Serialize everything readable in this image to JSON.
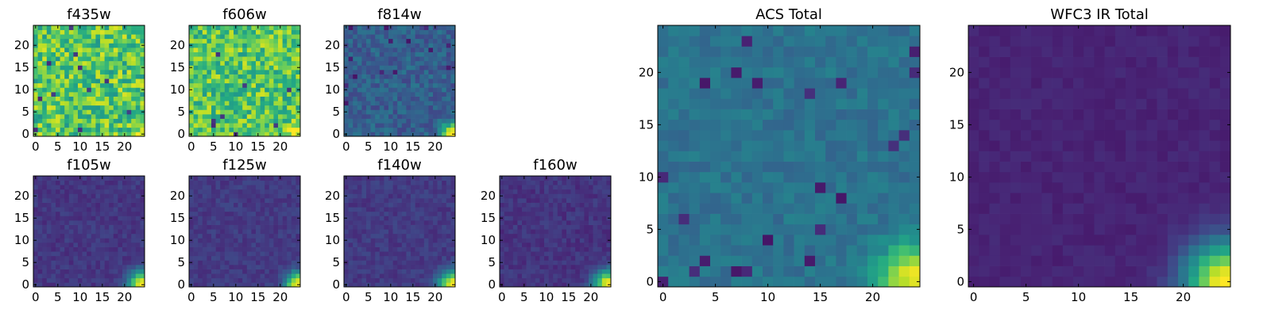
{
  "colormap": "viridis",
  "chart_data": [
    {
      "type": "heatmap",
      "title": "f435w",
      "size": 25,
      "vmin": 0,
      "vmax": 1,
      "xticks": [
        0,
        5,
        10,
        15,
        20
      ],
      "yticks": [
        0,
        5,
        10,
        15,
        20
      ],
      "base": 0.73,
      "noise": 0.22,
      "source": 0.22,
      "source_radius": 1.4,
      "dark_pixels": 12
    },
    {
      "type": "heatmap",
      "title": "f606w",
      "size": 25,
      "vmin": 0,
      "vmax": 1,
      "xticks": [
        0,
        5,
        10,
        15,
        20
      ],
      "yticks": [
        0,
        5,
        10,
        15,
        20
      ],
      "base": 0.73,
      "noise": 0.2,
      "source": 0.3,
      "source_radius": 1.6,
      "dark_pixels": 10
    },
    {
      "type": "heatmap",
      "title": "f814w",
      "size": 25,
      "vmin": 0,
      "vmax": 1,
      "xticks": [
        0,
        5,
        10,
        15,
        20
      ],
      "yticks": [
        0,
        5,
        10,
        15,
        20
      ],
      "base": 0.3,
      "noise": 0.1,
      "source": 0.72,
      "source_radius": 1.8,
      "dark_pixels": 14
    },
    {
      "type": "heatmap",
      "title": "f105w",
      "size": 25,
      "vmin": 0,
      "vmax": 1,
      "xticks": [
        0,
        5,
        10,
        15,
        20
      ],
      "yticks": [
        0,
        5,
        10,
        15,
        20
      ],
      "base": 0.16,
      "noise": 0.05,
      "source": 0.84,
      "source_radius": 2.2,
      "dark_pixels": 0
    },
    {
      "type": "heatmap",
      "title": "f125w",
      "size": 25,
      "vmin": 0,
      "vmax": 1,
      "xticks": [
        0,
        5,
        10,
        15,
        20
      ],
      "yticks": [
        0,
        5,
        10,
        15,
        20
      ],
      "base": 0.17,
      "noise": 0.05,
      "source": 0.84,
      "source_radius": 2.0,
      "dark_pixels": 0
    },
    {
      "type": "heatmap",
      "title": "f140w",
      "size": 25,
      "vmin": 0,
      "vmax": 1,
      "xticks": [
        0,
        5,
        10,
        15,
        20
      ],
      "yticks": [
        0,
        5,
        10,
        15,
        20
      ],
      "base": 0.17,
      "noise": 0.05,
      "source": 0.84,
      "source_radius": 2.2,
      "dark_pixels": 0
    },
    {
      "type": "heatmap",
      "title": "f160w",
      "size": 25,
      "vmin": 0,
      "vmax": 1,
      "xticks": [
        0,
        5,
        10,
        15,
        20
      ],
      "yticks": [
        0,
        5,
        10,
        15,
        20
      ],
      "base": 0.15,
      "noise": 0.05,
      "source": 0.86,
      "source_radius": 2.3,
      "dark_pixels": 0
    },
    {
      "type": "heatmap",
      "title": "ACS Total",
      "size": 25,
      "vmin": 0,
      "vmax": 1,
      "xticks": [
        0,
        5,
        10,
        15,
        20
      ],
      "yticks": [
        0,
        5,
        10,
        15,
        20
      ],
      "base": 0.38,
      "noise": 0.06,
      "source": 0.62,
      "source_radius": 2.4,
      "dark_pixels": 22
    },
    {
      "type": "heatmap",
      "title": "WFC3 IR Total",
      "size": 25,
      "vmin": 0,
      "vmax": 1,
      "xticks": [
        0,
        5,
        10,
        15,
        20
      ],
      "yticks": [
        0,
        5,
        10,
        15,
        20
      ],
      "base": 0.1,
      "noise": 0.025,
      "source": 0.9,
      "source_radius": 2.7,
      "dark_pixels": 0
    }
  ]
}
